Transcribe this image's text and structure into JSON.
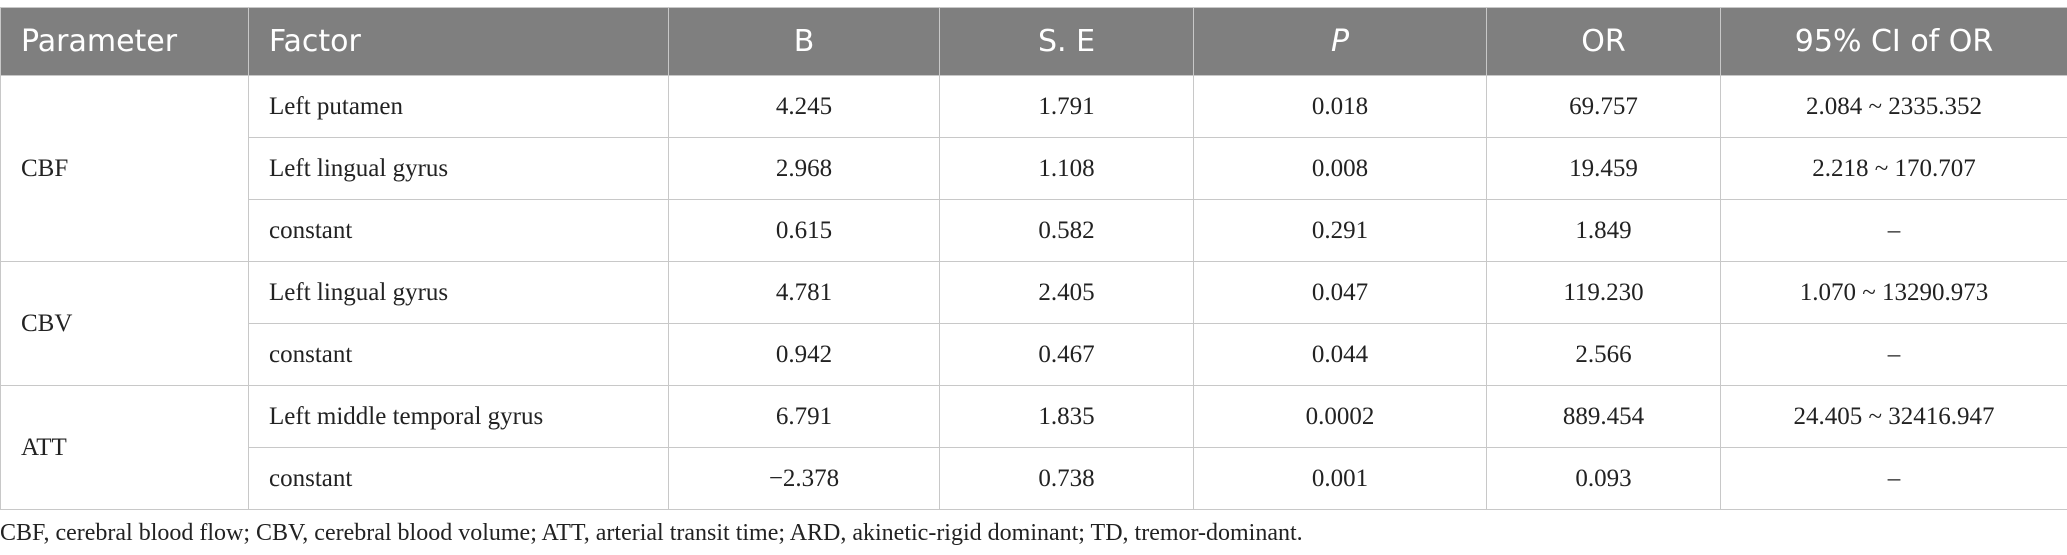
{
  "table": {
    "header": [
      "Parameter",
      "Factor",
      "B",
      "S. E",
      "P",
      "OR",
      "95% CI of OR"
    ],
    "groups": [
      {
        "parameter": "CBF",
        "rows": [
          [
            "Left putamen",
            "4.245",
            "1.791",
            "0.018",
            "69.757",
            "2.084 ~ 2335.352"
          ],
          [
            "Left lingual gyrus",
            "2.968",
            "1.108",
            "0.008",
            "19.459",
            "2.218 ~ 170.707"
          ],
          [
            "constant",
            "0.615",
            "0.582",
            "0.291",
            "1.849",
            "–"
          ]
        ]
      },
      {
        "parameter": "CBV",
        "rows": [
          [
            "Left lingual gyrus",
            "4.781",
            "2.405",
            "0.047",
            "119.230",
            "1.070 ~ 13290.973"
          ],
          [
            "constant",
            "0.942",
            "0.467",
            "0.044",
            "2.566",
            "–"
          ]
        ]
      },
      {
        "parameter": "ATT",
        "rows": [
          [
            "Left middle temporal gyrus",
            "6.791",
            "1.835",
            "0.0002",
            "889.454",
            "24.405 ~ 32416.947"
          ],
          [
            "constant",
            "−2.378",
            "0.738",
            "0.001",
            "0.093",
            "–"
          ]
        ]
      }
    ]
  },
  "footnote": "CBF, cerebral blood flow; CBV, cerebral blood volume; ATT, arterial transit time; ARD, akinetic-rigid dominant; TD, tremor-dominant."
}
